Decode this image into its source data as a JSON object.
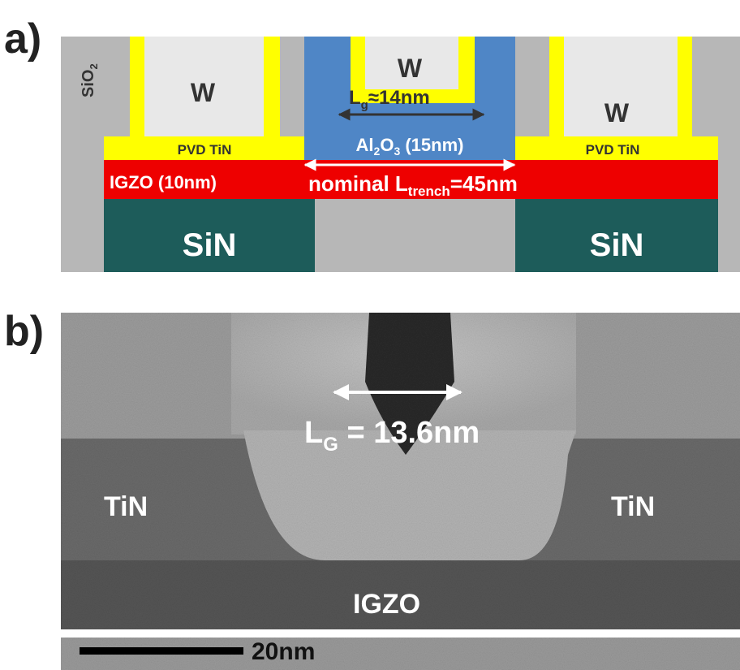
{
  "panel_a": {
    "label": "a)",
    "sio2": {
      "text": "SiO",
      "sub": "2"
    },
    "w_left": "W",
    "w_center": "W",
    "w_right": "W",
    "lg": {
      "text": "L",
      "sub": "g",
      "rest": "≈14nm"
    },
    "al2o3": {
      "p1": "Al",
      "s1": "2",
      "p2": "O",
      "s2": "3",
      "rest": " (15nm)"
    },
    "pvd_left": "PVD TiN",
    "pvd_right": "PVD TiN",
    "igzo": "IGZO (10nm)",
    "nominal": {
      "text": "nominal L",
      "sub": "trench",
      "rest": "=45nm"
    },
    "sin_left": "SiN",
    "sin_right": "SiN"
  },
  "panel_b": {
    "label": "b)",
    "lg": {
      "text": "L",
      "sub": "G",
      "rest": " = 13.6nm"
    },
    "tin_left": "TiN",
    "tin_right": "TiN",
    "igzo": "IGZO",
    "scale": "20nm"
  }
}
